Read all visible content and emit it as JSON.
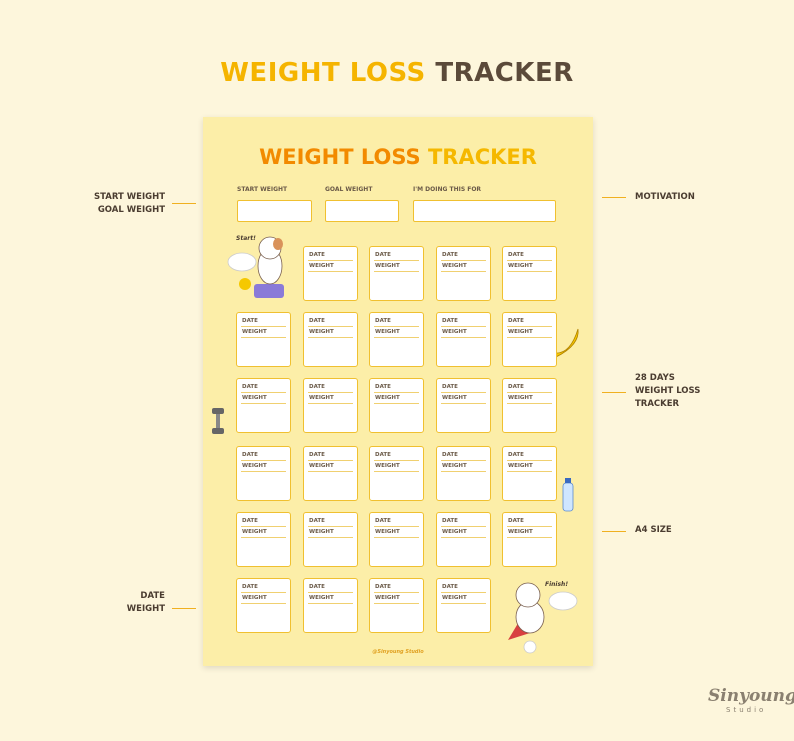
{
  "header": {
    "title_part1": "WEIGHT LOSS",
    "title_part2": "TRACKER"
  },
  "sheet": {
    "title_part1": "WEIGHT LOSS",
    "title_part2": "TRACKER",
    "fields": [
      "START WEIGHT",
      "GOAL WEIGHT",
      "I'M DOING THIS FOR"
    ],
    "start_bubble": "Start!",
    "finish_bubble": "Finish!",
    "credit": "@Sinyoung Studio",
    "day_rows": [
      [
        {
          "date": "DATE",
          "weight": "WEIGHT"
        },
        {
          "date": "DATE",
          "weight": "WEIGHT"
        },
        {
          "date": "DATE",
          "weight": "WEIGHT"
        },
        {
          "date": "DATE",
          "weight": "WEIGHT"
        }
      ],
      [
        {
          "date": "DATE",
          "weight": "WEIGHT"
        },
        {
          "date": "DATE",
          "weight": "WEIGHT"
        },
        {
          "date": "DATE",
          "weight": "WEIGHT"
        },
        {
          "date": "DATE",
          "weight": "WEIGHT"
        },
        {
          "date": "DATE",
          "weight": "WEIGHT"
        }
      ],
      [
        {
          "date": "DATE",
          "weight": "WEIGHT"
        },
        {
          "date": "DATE",
          "weight": "WEIGHT"
        },
        {
          "date": "DATE",
          "weight": "WEIGHT"
        },
        {
          "date": "DATE",
          "weight": "WEIGHT"
        },
        {
          "date": "DATE",
          "weight": "WEIGHT"
        }
      ],
      [
        {
          "date": "DATE",
          "weight": "WEIGHT"
        },
        {
          "date": "DATE",
          "weight": "WEIGHT"
        },
        {
          "date": "DATE",
          "weight": "WEIGHT"
        },
        {
          "date": "DATE",
          "weight": "WEIGHT"
        },
        {
          "date": "DATE",
          "weight": "WEIGHT"
        }
      ],
      [
        {
          "date": "DATE",
          "weight": "WEIGHT"
        },
        {
          "date": "DATE",
          "weight": "WEIGHT"
        },
        {
          "date": "DATE",
          "weight": "WEIGHT"
        },
        {
          "date": "DATE",
          "weight": "WEIGHT"
        },
        {
          "date": "DATE",
          "weight": "WEIGHT"
        }
      ],
      [
        {
          "date": "DATE",
          "weight": "WEIGHT"
        },
        {
          "date": "DATE",
          "weight": "WEIGHT"
        },
        {
          "date": "DATE",
          "weight": "WEIGHT"
        },
        {
          "date": "DATE",
          "weight": "WEIGHT"
        }
      ]
    ]
  },
  "annotations": {
    "left": [
      "START WEIGHT\nGOAL WEIGHT",
      "DATE\nWEIGHT"
    ],
    "right": [
      "MOTIVATION",
      "28 DAYS\nWEIGHT LOSS\nTRACKER",
      "A4 SIZE"
    ]
  },
  "brand": {
    "name": "Sinyoung",
    "sub": "Studio"
  }
}
